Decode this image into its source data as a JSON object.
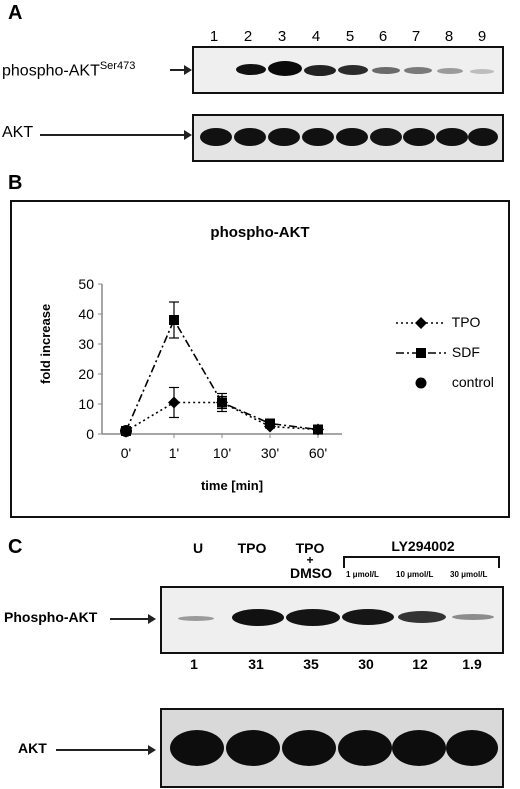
{
  "panel_a": {
    "letter": "A",
    "lanes": [
      "1",
      "2",
      "3",
      "4",
      "5",
      "6",
      "7",
      "8",
      "9"
    ],
    "row1_label": "phospho-AKT",
    "row1_sup": "Ser473",
    "row2_label": "AKT"
  },
  "panel_b": {
    "letter": "B"
  },
  "chart_data": {
    "type": "line",
    "title": "phospho-AKT",
    "xlabel": "time [min]",
    "ylabel": "fold increase",
    "categories": [
      "0'",
      "1'",
      "10'",
      "30'",
      "60'"
    ],
    "ylim": [
      0,
      50
    ],
    "yticks": [
      0,
      10,
      20,
      30,
      40,
      50
    ],
    "grid": false,
    "legend": "right",
    "series": [
      {
        "name": "TPO",
        "marker": "diamond",
        "line": "dotted",
        "values": [
          1,
          10.5,
          10.5,
          2.5,
          1.5
        ],
        "errors": [
          0,
          5,
          2,
          0.5,
          0.5
        ]
      },
      {
        "name": "SDF",
        "marker": "square",
        "line": "dash-dot",
        "values": [
          1,
          38,
          10.5,
          3.5,
          1.5
        ],
        "errors": [
          0,
          6,
          3,
          1,
          0.5
        ]
      },
      {
        "name": "control",
        "marker": "circle",
        "line": "none",
        "values": [
          1,
          null,
          null,
          null,
          null
        ],
        "errors": [
          0,
          0,
          0,
          0,
          0
        ]
      }
    ]
  },
  "panel_c": {
    "letter": "C",
    "col_u": "U",
    "col_tpo": "TPO",
    "col_tpo_dmso_top": "TPO",
    "col_tpo_dmso_plus": "+",
    "col_tpo_dmso_bottom": "DMSO",
    "inhibitor": "LY294002",
    "conc1": "1 μmol/L",
    "conc2": "10 μmol/L",
    "conc3": "30 μmol/L",
    "row1_label": "Phospho-AKT",
    "row2_label": "AKT",
    "quant": [
      "1",
      "31",
      "35",
      "30",
      "12",
      "1.9"
    ]
  }
}
